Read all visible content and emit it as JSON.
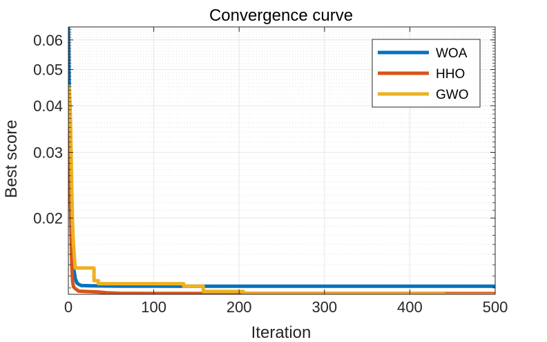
{
  "chart_data": {
    "type": "line",
    "title": "Convergence curve",
    "xlabel": "Iteration",
    "ylabel": "Best score",
    "xlim": [
      0,
      500
    ],
    "ylim": [
      0.0125,
      0.065
    ],
    "yscale": "log",
    "grid": true,
    "legend": "top-right",
    "xticks": [
      0,
      100,
      200,
      300,
      400,
      500
    ],
    "xtick_labels": [
      "0",
      "100",
      "200",
      "300",
      "400",
      "500"
    ],
    "yticks": [
      0.02,
      0.03,
      0.04,
      0.05,
      0.06
    ],
    "ytick_labels": [
      "0.02",
      "0.03",
      "0.04",
      "0.05",
      "0.06"
    ],
    "series": [
      {
        "name": "WOA",
        "color": "#0072BD",
        "x": [
          0,
          1,
          2,
          3,
          4,
          5,
          6,
          8,
          10,
          12,
          15,
          25,
          40,
          60,
          100,
          150,
          200,
          300,
          400,
          500
        ],
        "y": [
          0.065,
          0.045,
          0.03,
          0.022,
          0.018,
          0.016,
          0.0148,
          0.0138,
          0.0134,
          0.0133,
          0.0132,
          0.01318,
          0.01316,
          0.01315,
          0.01315,
          0.01314,
          0.01314,
          0.01314,
          0.01314,
          0.01314
        ]
      },
      {
        "name": "HHO",
        "color": "#D95319",
        "x": [
          0,
          1,
          2,
          3,
          4,
          5,
          6,
          8,
          10,
          12,
          20,
          35,
          45,
          60,
          100,
          150,
          200,
          300,
          400,
          500
        ],
        "y": [
          0.043,
          0.032,
          0.025,
          0.019,
          0.015,
          0.0135,
          0.0131,
          0.01295,
          0.01285,
          0.01275,
          0.01272,
          0.01268,
          0.01262,
          0.01258,
          0.01257,
          0.01257,
          0.01256,
          0.01256,
          0.01256,
          0.01256
        ]
      },
      {
        "name": "GWO",
        "color": "#EDB120",
        "x": [
          0,
          1,
          2,
          3,
          4,
          5,
          6,
          8,
          30,
          30,
          35,
          35,
          50,
          135,
          135,
          158,
          158,
          205,
          205,
          440,
          440,
          500
        ],
        "y": [
          0.035,
          0.045,
          0.04,
          0.032,
          0.024,
          0.019,
          0.017,
          0.0147,
          0.0147,
          0.0136,
          0.0136,
          0.01335,
          0.01335,
          0.01335,
          0.01315,
          0.01315,
          0.01272,
          0.01272,
          0.01252,
          0.01252,
          0.01246,
          0.01246
        ]
      }
    ]
  }
}
